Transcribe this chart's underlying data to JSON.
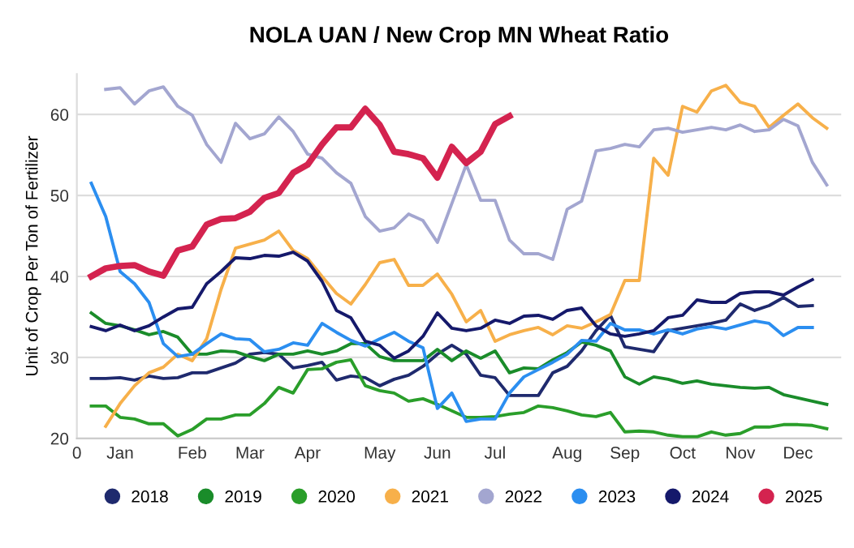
{
  "chart_data": {
    "type": "line",
    "title": "NOLA UAN / New Crop MN Wheat Ratio",
    "ylabel": "Unit of Crop Per Ton of Fertilizer",
    "categories": [
      "0",
      null,
      null,
      "Jan",
      null,
      null,
      null,
      null,
      "Feb",
      null,
      null,
      null,
      "Mar",
      null,
      null,
      null,
      "Apr",
      null,
      null,
      null,
      null,
      "May",
      null,
      null,
      null,
      "Jun",
      null,
      null,
      null,
      "Jul",
      null,
      null,
      null,
      null,
      "Aug",
      null,
      null,
      null,
      "Sep",
      null,
      null,
      null,
      "Oct",
      null,
      null,
      null,
      "Nov",
      null,
      null,
      null,
      "Dec",
      null,
      null
    ],
    "ylim": [
      20,
      65
    ],
    "yticks": [
      20,
      30,
      40,
      50,
      60
    ],
    "grid": "y",
    "legend": "bottom",
    "marker": "none",
    "line_style": "solid",
    "series": [
      {
        "name": "2018",
        "color": "#1f2a6e",
        "values": [
          null,
          27.4,
          27.4,
          27.5,
          27.2,
          27.7,
          27.4,
          27.5,
          28.1,
          28.1,
          28.7,
          29.3,
          30.4,
          30.6,
          30.4,
          28.7,
          29.0,
          29.4,
          27.2,
          27.7,
          27.5,
          26.5,
          27.3,
          27.8,
          28.9,
          30.4,
          31.5,
          30.4,
          27.8,
          27.5,
          25.3,
          25.3,
          25.3,
          28.1,
          28.9,
          30.8,
          33.3,
          35.2,
          31.3,
          31.0,
          30.7,
          33.3,
          33.6,
          33.9,
          34.2,
          34.6,
          36.6,
          35.8,
          36.4,
          37.4,
          36.3,
          36.4,
          null
        ]
      },
      {
        "name": "2019",
        "color": "#1a8c2a",
        "values": [
          null,
          35.5,
          34.2,
          33.9,
          33.4,
          32.8,
          33.2,
          32.5,
          30.4,
          30.4,
          30.8,
          30.7,
          30.1,
          29.6,
          30.4,
          30.4,
          30.8,
          30.4,
          30.8,
          31.7,
          31.7,
          30.1,
          29.6,
          29.6,
          29.6,
          31.0,
          29.6,
          30.8,
          29.9,
          30.8,
          28.1,
          28.7,
          28.6,
          29.7,
          30.6,
          31.9,
          31.5,
          30.8,
          27.6,
          26.7,
          27.6,
          27.3,
          26.8,
          27.1,
          26.7,
          26.5,
          26.3,
          26.2,
          26.3,
          25.4,
          25.0,
          24.6,
          24.2
        ]
      },
      {
        "name": "2020",
        "color": "#2a9e2a",
        "values": [
          null,
          24.0,
          24.0,
          22.6,
          22.4,
          21.8,
          21.8,
          20.3,
          21.1,
          22.4,
          22.4,
          22.9,
          22.9,
          24.3,
          26.3,
          25.6,
          28.5,
          28.6,
          29.4,
          29.7,
          26.5,
          25.9,
          25.6,
          24.6,
          24.9,
          24.2,
          23.4,
          22.6,
          22.6,
          22.7,
          23.0,
          23.2,
          24.0,
          23.8,
          23.4,
          22.9,
          22.7,
          23.2,
          20.8,
          20.9,
          20.8,
          20.4,
          20.2,
          20.2,
          20.8,
          20.4,
          20.6,
          21.4,
          21.4,
          21.7,
          21.7,
          21.6,
          21.2
        ]
      },
      {
        "name": "2021",
        "color": "#f7b04a",
        "values": [
          null,
          null,
          21.5,
          24.3,
          26.5,
          28.1,
          28.8,
          30.4,
          29.6,
          32.3,
          38.4,
          43.5,
          44.0,
          44.5,
          45.6,
          43.2,
          42.2,
          40.0,
          37.9,
          36.6,
          39.0,
          41.7,
          42.1,
          38.9,
          38.9,
          40.3,
          37.8,
          34.4,
          35.8,
          32.0,
          32.8,
          33.3,
          33.7,
          32.8,
          33.9,
          33.6,
          34.4,
          35.3,
          39.5,
          39.5,
          54.6,
          52.5,
          61.0,
          60.3,
          62.9,
          63.6,
          61.5,
          61.0,
          58.4,
          59.9,
          61.3,
          59.6,
          58.3
        ]
      },
      {
        "name": "2022",
        "color": "#a3a6d0",
        "values": [
          null,
          null,
          63.1,
          63.3,
          61.3,
          62.9,
          63.4,
          61.0,
          59.9,
          56.3,
          54.1,
          58.9,
          57.0,
          57.6,
          59.7,
          57.9,
          55.1,
          54.6,
          52.8,
          51.5,
          47.4,
          45.6,
          46.0,
          47.7,
          46.9,
          44.2,
          49.0,
          53.8,
          49.4,
          49.4,
          44.5,
          42.8,
          42.8,
          42.1,
          48.3,
          49.3,
          55.5,
          55.8,
          56.3,
          56.0,
          58.1,
          58.3,
          57.8,
          58.1,
          58.4,
          58.1,
          58.7,
          57.9,
          58.1,
          59.4,
          58.6,
          54.1,
          51.3
        ]
      },
      {
        "name": "2023",
        "color": "#2b8ef0",
        "values": [
          null,
          51.5,
          47.4,
          40.6,
          39.1,
          36.8,
          31.7,
          30.1,
          30.4,
          31.7,
          32.9,
          32.3,
          32.2,
          30.7,
          31.0,
          31.8,
          31.5,
          34.2,
          33.1,
          32.1,
          31.4,
          32.3,
          33.1,
          32.0,
          31.2,
          23.7,
          25.6,
          22.1,
          22.4,
          22.4,
          25.6,
          27.6,
          28.5,
          29.4,
          30.4,
          32.1,
          32.0,
          34.2,
          33.4,
          33.4,
          32.9,
          33.4,
          32.9,
          33.5,
          33.8,
          33.5,
          34.0,
          34.5,
          34.2,
          32.7,
          33.7,
          33.7,
          null
        ]
      },
      {
        "name": "2024",
        "color": "#15196b",
        "values": [
          null,
          33.8,
          33.3,
          34.0,
          33.3,
          33.9,
          35.0,
          36.0,
          36.2,
          39.1,
          40.6,
          42.3,
          42.2,
          42.6,
          42.5,
          43.0,
          41.9,
          39.4,
          35.8,
          34.9,
          32.0,
          31.5,
          29.9,
          30.8,
          32.6,
          35.5,
          33.6,
          33.3,
          33.6,
          34.6,
          34.2,
          35.1,
          35.2,
          34.7,
          35.8,
          36.1,
          33.9,
          32.9,
          32.6,
          32.9,
          33.3,
          34.9,
          35.2,
          37.1,
          36.8,
          36.8,
          37.9,
          38.1,
          38.1,
          37.7,
          38.7,
          39.6,
          null
        ]
      },
      {
        "name": "2025",
        "color": "#d4234f",
        "values": [
          null,
          40.0,
          41.0,
          41.3,
          41.4,
          40.6,
          40.1,
          43.2,
          43.7,
          46.4,
          47.1,
          47.2,
          48.0,
          49.7,
          50.3,
          52.8,
          53.8,
          56.3,
          58.4,
          58.4,
          60.7,
          58.7,
          55.4,
          55.1,
          54.6,
          52.2,
          56.0,
          54.0,
          55.4,
          58.8,
          59.8,
          null,
          null,
          null,
          null,
          null,
          null,
          null,
          null,
          null,
          null,
          null,
          null,
          null,
          null,
          null,
          null,
          null,
          null,
          null,
          null,
          null,
          null
        ]
      }
    ]
  }
}
